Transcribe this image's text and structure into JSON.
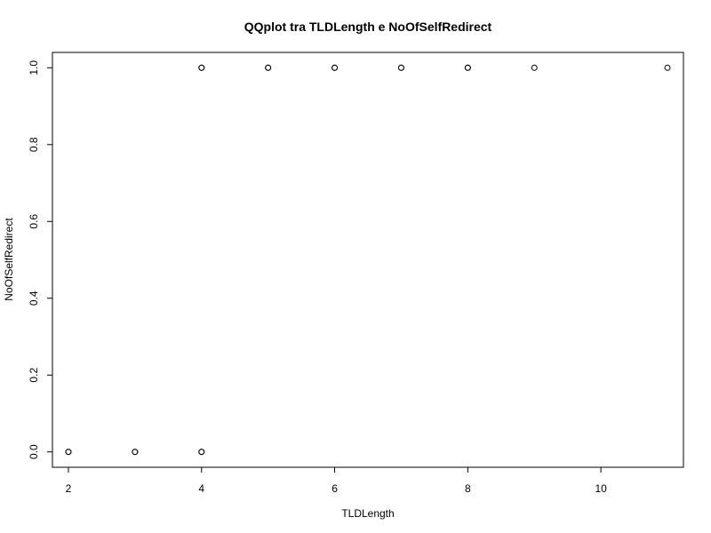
{
  "chart_data": {
    "type": "scatter",
    "title": "QQplot tra TLDLength e NoOfSelfRedirect",
    "xlabel": "TLDLength",
    "ylabel": "NoOfSelfRedirect",
    "xlim": [
      1.76,
      11.24
    ],
    "ylim": [
      -0.04,
      1.04
    ],
    "x_ticks": [
      2,
      4,
      6,
      8,
      10
    ],
    "y_ticks": [
      0.0,
      0.2,
      0.4,
      0.6,
      0.8,
      1.0
    ],
    "x_tick_labels": [
      "2",
      "4",
      "6",
      "8",
      "10"
    ],
    "y_tick_labels": [
      "0.0",
      "0.2",
      "0.4",
      "0.6",
      "0.8",
      "1.0"
    ],
    "grid": false,
    "legend": "none",
    "marker": "open-circle",
    "marker_color": "#000000",
    "points": [
      {
        "x": 2,
        "y": 0
      },
      {
        "x": 2,
        "y": 0
      },
      {
        "x": 3,
        "y": 0
      },
      {
        "x": 3,
        "y": 0
      },
      {
        "x": 4,
        "y": 0
      },
      {
        "x": 4,
        "y": 0
      },
      {
        "x": 4,
        "y": 1
      },
      {
        "x": 4,
        "y": 1
      },
      {
        "x": 5,
        "y": 1
      },
      {
        "x": 5,
        "y": 1
      },
      {
        "x": 6,
        "y": 1
      },
      {
        "x": 6,
        "y": 1
      },
      {
        "x": 7,
        "y": 1
      },
      {
        "x": 7,
        "y": 1
      },
      {
        "x": 8,
        "y": 1
      },
      {
        "x": 8,
        "y": 1
      },
      {
        "x": 9,
        "y": 1
      },
      {
        "x": 11,
        "y": 1
      }
    ]
  }
}
